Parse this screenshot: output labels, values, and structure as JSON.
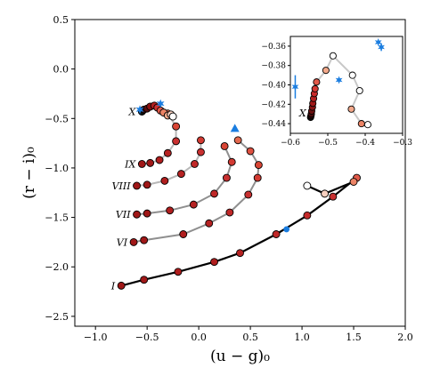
{
  "chart_data": {
    "type": "scatter",
    "xlabel": "(u − g)₀",
    "ylabel": "(r − i)₀",
    "xlim": [
      -1.2,
      2.0
    ],
    "ylim": [
      -2.6,
      0.5
    ],
    "xticks": [
      "−1.0",
      "−0.5",
      "0.0",
      "0.5",
      "1.0",
      "1.5",
      "2.0"
    ],
    "xtick_values": [
      -1.0,
      -0.5,
      0.0,
      0.5,
      1.0,
      1.5,
      2.0
    ],
    "yticks": [
      "0.5",
      "0.0",
      "−0.5",
      "−1.0",
      "−1.5",
      "−2.0",
      "−2.5"
    ],
    "ytick_values": [
      0.5,
      0.0,
      -0.5,
      -1.0,
      -1.5,
      -2.0,
      -2.5
    ],
    "grid": false,
    "series": [
      {
        "name": "I",
        "line_color": "#000000",
        "points": [
          {
            "x": -0.75,
            "y": -2.19,
            "c": "#a01818"
          },
          {
            "x": -0.53,
            "y": -2.13,
            "c": "#a01818"
          },
          {
            "x": -0.2,
            "y": -2.05,
            "c": "#b01e1e"
          },
          {
            "x": 0.15,
            "y": -1.95,
            "c": "#b01e1e"
          },
          {
            "x": 0.4,
            "y": -1.86,
            "c": "#b52222"
          },
          {
            "x": 0.75,
            "y": -1.67,
            "c": "#c02828"
          },
          {
            "x": 1.05,
            "y": -1.48,
            "c": "#c42a2a"
          },
          {
            "x": 1.3,
            "y": -1.29,
            "c": "#c83030"
          },
          {
            "x": 1.53,
            "y": -1.1,
            "c": "#e25a4a"
          },
          {
            "x": 1.5,
            "y": -1.14,
            "c": "#ec8466"
          },
          {
            "x": 1.22,
            "y": -1.26,
            "c": "#f8d0c0"
          },
          {
            "x": 1.05,
            "y": -1.18,
            "c": "#ffffff"
          }
        ]
      },
      {
        "name": "VI",
        "line_color": "#8f8f8f",
        "points": [
          {
            "x": -0.63,
            "y": -1.75,
            "c": "#a01818"
          },
          {
            "x": -0.53,
            "y": -1.73,
            "c": "#a01818"
          },
          {
            "x": -0.15,
            "y": -1.67,
            "c": "#b01e1e"
          },
          {
            "x": 0.1,
            "y": -1.56,
            "c": "#b52222"
          },
          {
            "x": 0.3,
            "y": -1.45,
            "c": "#c02828"
          },
          {
            "x": 0.48,
            "y": -1.27,
            "c": "#c83030"
          },
          {
            "x": 0.57,
            "y": -1.1,
            "c": "#d23a32"
          },
          {
            "x": 0.58,
            "y": -0.97,
            "c": "#d84535"
          },
          {
            "x": 0.5,
            "y": -0.83,
            "c": "#de5040"
          },
          {
            "x": 0.38,
            "y": -0.72,
            "c": "#e3684e"
          }
        ]
      },
      {
        "name": "VII",
        "line_color": "#8f8f8f",
        "points": [
          {
            "x": -0.6,
            "y": -1.47,
            "c": "#a01818"
          },
          {
            "x": -0.5,
            "y": -1.46,
            "c": "#a01818"
          },
          {
            "x": -0.28,
            "y": -1.43,
            "c": "#b01e1e"
          },
          {
            "x": -0.05,
            "y": -1.37,
            "c": "#b52222"
          },
          {
            "x": 0.15,
            "y": -1.26,
            "c": "#c02828"
          },
          {
            "x": 0.27,
            "y": -1.1,
            "c": "#c83030"
          },
          {
            "x": 0.32,
            "y": -0.94,
            "c": "#d23a32"
          },
          {
            "x": 0.25,
            "y": -0.78,
            "c": "#d84535"
          }
        ]
      },
      {
        "name": "VIII",
        "line_color": "#b8b8b8",
        "points": [
          {
            "x": -0.6,
            "y": -1.18,
            "c": "#a01818"
          },
          {
            "x": -0.5,
            "y": -1.17,
            "c": "#a01818"
          },
          {
            "x": -0.33,
            "y": -1.13,
            "c": "#b01e1e"
          },
          {
            "x": -0.17,
            "y": -1.06,
            "c": "#b52222"
          },
          {
            "x": -0.04,
            "y": -0.96,
            "c": "#c02828"
          },
          {
            "x": 0.02,
            "y": -0.84,
            "c": "#c83030"
          },
          {
            "x": 0.02,
            "y": -0.72,
            "c": "#d23a32"
          }
        ]
      },
      {
        "name": "IX",
        "line_color": "#b8b8b8",
        "points": [
          {
            "x": -0.55,
            "y": -0.96,
            "c": "#a01818"
          },
          {
            "x": -0.47,
            "y": -0.95,
            "c": "#a01818"
          },
          {
            "x": -0.38,
            "y": -0.92,
            "c": "#b01e1e"
          },
          {
            "x": -0.3,
            "y": -0.85,
            "c": "#b52222"
          },
          {
            "x": -0.22,
            "y": -0.73,
            "c": "#c83030"
          },
          {
            "x": -0.22,
            "y": -0.58,
            "c": "#d84535"
          },
          {
            "x": -0.3,
            "y": -0.45,
            "c": "#e3684e"
          }
        ]
      },
      {
        "name": "X",
        "line_color": "#c8c8c8",
        "points": [
          {
            "x": -0.55,
            "y": -0.43,
            "c": "#111111"
          },
          {
            "x": -0.53,
            "y": -0.41,
            "c": "#3a0a0a"
          },
          {
            "x": -0.5,
            "y": -0.4,
            "c": "#5a0e0e"
          },
          {
            "x": -0.47,
            "y": -0.38,
            "c": "#8a1212"
          },
          {
            "x": -0.43,
            "y": -0.37,
            "c": "#b01e1e"
          },
          {
            "x": -0.4,
            "y": -0.39,
            "c": "#d03030"
          },
          {
            "x": -0.37,
            "y": -0.42,
            "c": "#e25a4a"
          },
          {
            "x": -0.34,
            "y": -0.44,
            "c": "#ec8466"
          },
          {
            "x": -0.3,
            "y": -0.47,
            "c": "#f2a88a"
          },
          {
            "x": -0.27,
            "y": -0.46,
            "c": "#f8d0c0"
          },
          {
            "x": -0.25,
            "y": -0.48,
            "c": "#ffffff"
          }
        ]
      }
    ],
    "observations": [
      {
        "marker": "triangle",
        "x": 0.35,
        "y": -0.6,
        "color": "#1a7de0"
      },
      {
        "marker": "circle",
        "x": 0.85,
        "y": -1.62,
        "color": "#1a7de0"
      },
      {
        "marker": "star",
        "x": -0.57,
        "y": -0.41,
        "color": "#1a7de0"
      },
      {
        "marker": "star",
        "x": -0.37,
        "y": -0.35,
        "color": "#1a7de0"
      }
    ],
    "inset": {
      "xlim": [
        -0.6,
        -0.3
      ],
      "ylim": [
        -0.45,
        -0.35
      ],
      "xticks": [
        "−0.6",
        "−0.5",
        "−0.4",
        "−0.3"
      ],
      "xtick_values": [
        -0.6,
        -0.5,
        -0.4,
        -0.3
      ],
      "yticks": [
        "−0.36",
        "−0.38",
        "−0.40",
        "−0.42",
        "−0.44"
      ],
      "ytick_values": [
        -0.36,
        -0.38,
        -0.4,
        -0.42,
        -0.44
      ],
      "label": "X",
      "points": [
        {
          "x": -0.546,
          "y": -0.4335,
          "c": "#111111"
        },
        {
          "x": -0.545,
          "y": -0.432,
          "c": "#2a0606"
        },
        {
          "x": -0.544,
          "y": -0.43,
          "c": "#4a0c0c"
        },
        {
          "x": -0.543,
          "y": -0.427,
          "c": "#6a1010"
        },
        {
          "x": -0.541,
          "y": -0.423,
          "c": "#8a1414"
        },
        {
          "x": -0.54,
          "y": -0.419,
          "c": "#a01818"
        },
        {
          "x": -0.538,
          "y": -0.414,
          "c": "#b52020"
        },
        {
          "x": -0.536,
          "y": -0.409,
          "c": "#c82a2a"
        },
        {
          "x": -0.534,
          "y": -0.404,
          "c": "#d63a34"
        },
        {
          "x": -0.53,
          "y": -0.397,
          "c": "#e25a4a"
        },
        {
          "x": -0.505,
          "y": -0.385,
          "c": "#f2a88a"
        },
        {
          "x": -0.486,
          "y": -0.37,
          "c": "#ffffff"
        },
        {
          "x": -0.434,
          "y": -0.39,
          "c": "#ffffff"
        },
        {
          "x": -0.415,
          "y": -0.406,
          "c": "#ffffff"
        },
        {
          "x": -0.437,
          "y": -0.425,
          "c": "#f2a88a"
        },
        {
          "x": -0.41,
          "y": -0.44,
          "c": "#ec8466"
        },
        {
          "x": -0.393,
          "y": -0.441,
          "c": "#ffffff"
        }
      ],
      "observations": [
        {
          "marker": "star",
          "x": -0.587,
          "y": -0.402,
          "color": "#1a7de0",
          "err": 0.012
        },
        {
          "marker": "star",
          "x": -0.47,
          "y": -0.395,
          "color": "#1a7de0",
          "err": 0
        },
        {
          "marker": "star",
          "x": -0.365,
          "y": -0.356,
          "color": "#1a7de0",
          "err": 0
        },
        {
          "marker": "star",
          "x": -0.357,
          "y": -0.361,
          "color": "#1a7de0",
          "err": 0.004
        }
      ]
    }
  }
}
